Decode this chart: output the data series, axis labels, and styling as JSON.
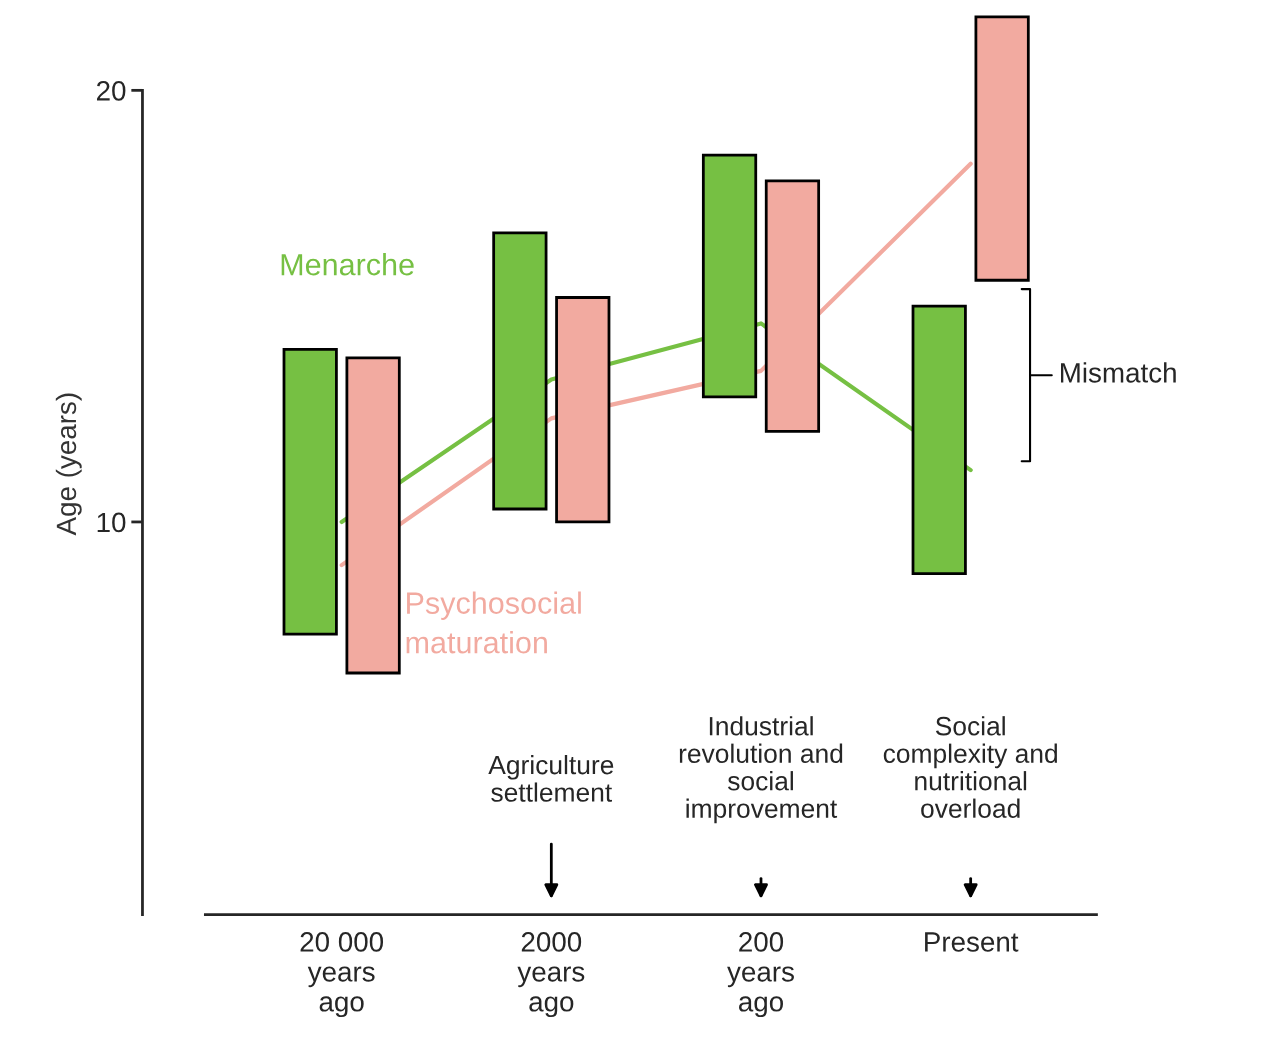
{
  "chart_data": {
    "type": "bar",
    "ylabel": "Age (years)",
    "categories": [
      "20 000\nyears\nago",
      "2000\nyears\nago",
      "200\nyears\nago",
      "Present"
    ],
    "ylim": [
      0.9,
      21.8
    ],
    "yticks": [
      10,
      20
    ],
    "grid": false,
    "series": [
      {
        "name": "Menarche",
        "color": "#76c043",
        "base": [
          7.4,
          10.3,
          12.9,
          8.8
        ],
        "values": [
          6.6,
          6.4,
          5.6,
          6.2
        ]
      },
      {
        "name": "Psychosocial\nmaturation",
        "color": "#f2aaa0",
        "base": [
          6.5,
          10.0,
          12.1,
          15.6
        ],
        "values": [
          7.3,
          5.2,
          5.8,
          6.1
        ]
      },
      {
        "type": "line",
        "color": "#76c043",
        "values": [
          10.0,
          13.3,
          14.6,
          11.2
        ]
      },
      {
        "type": "line",
        "color": "#f2aaa0",
        "values": [
          9.0,
          12.4,
          13.5,
          18.3
        ]
      }
    ],
    "annotations": [
      "Agriculture\nsettlement",
      "Industrial\nrevolution and\nsocial\nimprovement",
      "Social\ncomplexity and\nnutritional\noverload",
      "Mismatch"
    ]
  }
}
